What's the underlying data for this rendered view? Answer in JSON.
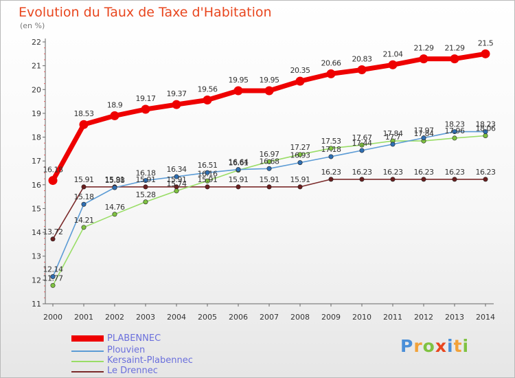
{
  "title": "Evolution du Taux de Taxe d'Habitation",
  "unit_label": "(en %)",
  "logo": {
    "letters": [
      "P",
      "r",
      "o",
      "x",
      "i",
      "t",
      "i"
    ],
    "colors": [
      "#4a8fd8",
      "#f2a23a",
      "#7fc241",
      "#e8461e",
      "#4a8fd8",
      "#f2a23a",
      "#7fc241"
    ]
  },
  "chart_data": {
    "type": "line",
    "title": "Evolution du Taux de Taxe d'Habitation",
    "ylabel": "(en %)",
    "xlabel": "",
    "x": [
      "2000",
      "2001",
      "2002",
      "2003",
      "2004",
      "2005",
      "2006",
      "2007",
      "2008",
      "2009",
      "2010",
      "2011",
      "2012",
      "2013",
      "2014"
    ],
    "ylim": [
      11,
      22
    ],
    "yticks": [
      "11",
      "12",
      "13",
      "14",
      "15",
      "16",
      "17",
      "18",
      "19",
      "20",
      "21",
      "22"
    ],
    "grid": false,
    "legend_position": "bottom-left",
    "series": [
      {
        "name": "PLABENNEC",
        "color": "#ee0000",
        "weight": "thick",
        "values": [
          16.18,
          18.53,
          18.9,
          19.17,
          19.37,
          19.56,
          19.95,
          19.95,
          20.35,
          20.66,
          20.83,
          21.04,
          21.29,
          21.29,
          21.5
        ],
        "labels": [
          "16.18",
          "18.53",
          "18.9",
          "19.17",
          "19.37",
          "19.56",
          "19.95",
          "19.95",
          "20.35",
          "20.66",
          "20.83",
          "21.04",
          "21.29",
          "21.29",
          "21.5"
        ]
      },
      {
        "name": "Plouvien",
        "color": "#5b9bd5",
        "marker": "#2f6fb3",
        "values": [
          12.14,
          15.18,
          15.88,
          16.18,
          16.34,
          16.51,
          16.64,
          16.68,
          16.93,
          17.18,
          17.44,
          17.7,
          17.97,
          18.23,
          18.23
        ],
        "labels": [
          "12.14",
          "15.18",
          "15.88",
          "16.18",
          "16.34",
          "16.51",
          "16.64",
          "16.68",
          "16.93",
          "17.18",
          "17.44",
          "17.7",
          "17.97",
          "18.23",
          "18.23"
        ]
      },
      {
        "name": "Kersaint-Plabennec",
        "color": "#99dd66",
        "marker": "#7fc241",
        "values": [
          11.77,
          14.21,
          14.76,
          15.28,
          15.74,
          16.16,
          16.61,
          16.97,
          17.27,
          17.53,
          17.67,
          17.84,
          17.84,
          17.96,
          18.06
        ],
        "labels": [
          "11.77",
          "14.21",
          "14.76",
          "15.28",
          "15.74",
          "16.16",
          "16.61",
          "16.97",
          "17.27",
          "17.53",
          "17.67",
          "17.84",
          "17.84",
          "17.96",
          "18.06"
        ]
      },
      {
        "name": "Le Drennec",
        "color": "#7a2a2a",
        "marker": "#6b1f1f",
        "values": [
          13.72,
          15.91,
          15.91,
          15.91,
          15.91,
          15.91,
          15.91,
          15.91,
          15.91,
          16.23,
          16.23,
          16.23,
          16.23,
          16.23,
          16.23
        ],
        "labels": [
          "13.72",
          "15.91",
          "15.91",
          "15.91",
          "15.91",
          "15.91",
          "15.91",
          "15.91",
          "15.91",
          "16.23",
          "16.23",
          "16.23",
          "16.23",
          "16.23",
          "16.23"
        ]
      }
    ]
  }
}
